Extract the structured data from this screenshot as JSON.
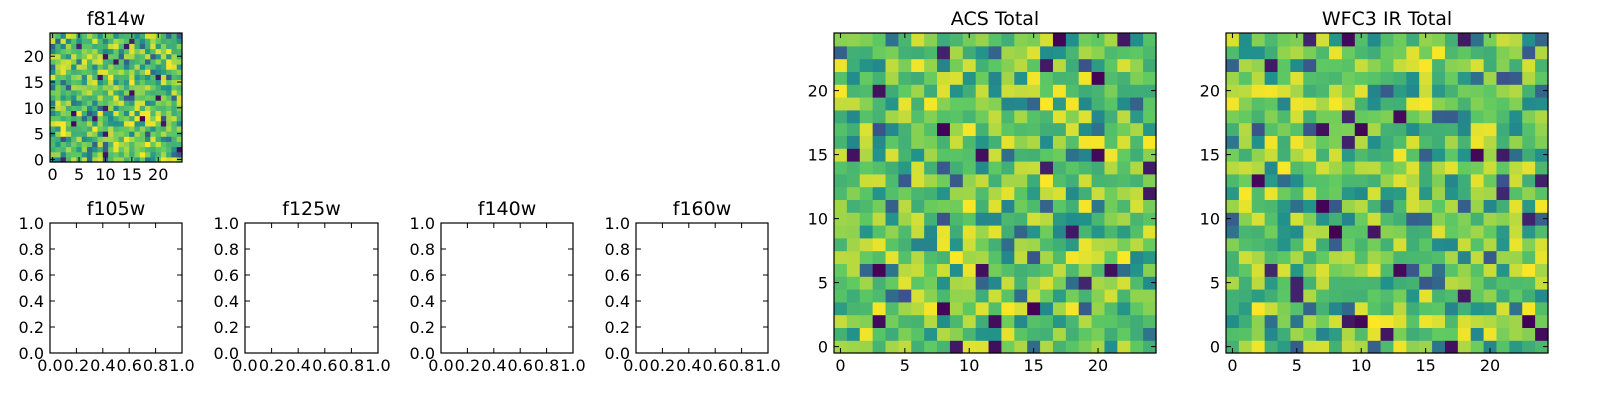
{
  "figure": {
    "colormap": [
      "#440154",
      "#3b528b",
      "#21918c",
      "#5ec962",
      "#fde725"
    ]
  },
  "chart_data": [
    {
      "id": "f814w",
      "type": "heatmap",
      "title": "f814w",
      "grid_size": 25,
      "seed": 814,
      "xticks": [
        "0",
        "5",
        "10",
        "15",
        "20"
      ],
      "yticks": [
        "0",
        "5",
        "10",
        "15",
        "20"
      ]
    },
    {
      "id": "f105w",
      "type": "empty",
      "title": "f105w",
      "xticks": [
        "0.0",
        "0.2",
        "0.4",
        "0.6",
        "0.8",
        "1.0"
      ],
      "yticks": [
        "0.0",
        "0.2",
        "0.4",
        "0.6",
        "0.8",
        "1.0"
      ]
    },
    {
      "id": "f125w",
      "type": "empty",
      "title": "f125w",
      "xticks": [
        "0.0",
        "0.2",
        "0.4",
        "0.6",
        "0.8",
        "1.0"
      ],
      "yticks": [
        "0.0",
        "0.2",
        "0.4",
        "0.6",
        "0.8",
        "1.0"
      ]
    },
    {
      "id": "f140w",
      "type": "empty",
      "title": "f140w",
      "xticks": [
        "0.0",
        "0.2",
        "0.4",
        "0.6",
        "0.8",
        "1.0"
      ],
      "yticks": [
        "0.0",
        "0.2",
        "0.4",
        "0.6",
        "0.8",
        "1.0"
      ]
    },
    {
      "id": "f160w",
      "type": "empty",
      "title": "f160w",
      "xticks": [
        "0.0",
        "0.2",
        "0.4",
        "0.6",
        "0.8",
        "1.0"
      ],
      "yticks": [
        "0.0",
        "0.2",
        "0.4",
        "0.6",
        "0.8",
        "1.0"
      ]
    },
    {
      "id": "acs-total",
      "type": "heatmap",
      "title": "ACS Total",
      "grid_size": 25,
      "seed": 2024,
      "xticks": [
        "0",
        "5",
        "10",
        "15",
        "20"
      ],
      "yticks": [
        "0",
        "5",
        "10",
        "15",
        "20"
      ]
    },
    {
      "id": "wfc3-ir-total",
      "type": "heatmap",
      "title": "WFC3 IR Total",
      "grid_size": 25,
      "seed": 3311,
      "xticks": [
        "0",
        "5",
        "10",
        "15",
        "20"
      ],
      "yticks": [
        "0",
        "5",
        "10",
        "15",
        "20"
      ]
    }
  ]
}
